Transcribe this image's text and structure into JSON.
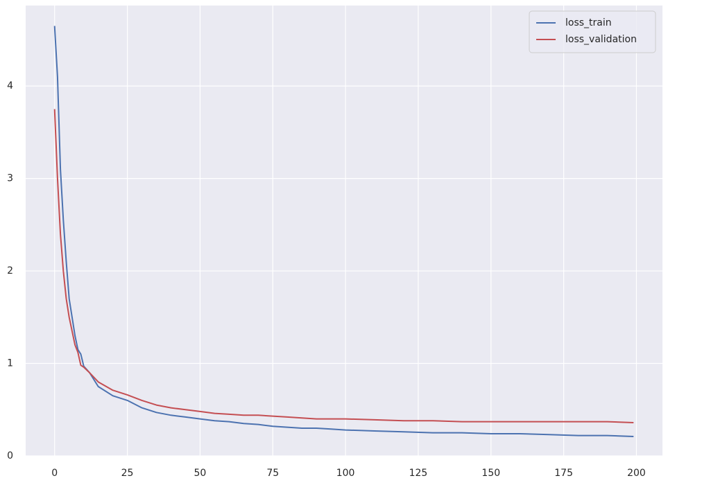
{
  "chart_data": {
    "type": "line",
    "x": [
      0,
      1,
      2,
      3,
      4,
      5,
      6,
      7,
      8,
      9,
      10,
      12,
      15,
      20,
      25,
      30,
      35,
      40,
      45,
      50,
      55,
      60,
      65,
      70,
      75,
      80,
      85,
      90,
      95,
      100,
      110,
      120,
      130,
      140,
      150,
      160,
      170,
      180,
      190,
      199
    ],
    "series": [
      {
        "name": "loss_train",
        "color": "#4c72b0",
        "values": [
          4.65,
          4.1,
          3.1,
          2.55,
          2.1,
          1.7,
          1.5,
          1.3,
          1.15,
          1.1,
          0.97,
          0.9,
          0.75,
          0.65,
          0.6,
          0.52,
          0.47,
          0.44,
          0.42,
          0.4,
          0.38,
          0.37,
          0.35,
          0.34,
          0.32,
          0.31,
          0.3,
          0.3,
          0.29,
          0.28,
          0.27,
          0.26,
          0.25,
          0.25,
          0.24,
          0.24,
          0.23,
          0.22,
          0.22,
          0.21
        ]
      },
      {
        "name": "loss_validation",
        "color": "#c44e52",
        "values": [
          3.75,
          3.0,
          2.4,
          2.0,
          1.7,
          1.5,
          1.35,
          1.2,
          1.12,
          0.98,
          0.96,
          0.9,
          0.8,
          0.71,
          0.66,
          0.6,
          0.55,
          0.52,
          0.5,
          0.48,
          0.46,
          0.45,
          0.44,
          0.44,
          0.43,
          0.42,
          0.41,
          0.4,
          0.4,
          0.4,
          0.39,
          0.38,
          0.38,
          0.37,
          0.37,
          0.37,
          0.37,
          0.37,
          0.37,
          0.36
        ]
      }
    ],
    "xlim": [
      -9.95,
      208.95
    ],
    "xticks": [
      0,
      25,
      50,
      75,
      100,
      125,
      150,
      175,
      200
    ],
    "ylim": [
      0,
      4.87
    ],
    "yticks": [
      0,
      1,
      2,
      3,
      4
    ],
    "grid": true,
    "legend": "upper-right"
  }
}
